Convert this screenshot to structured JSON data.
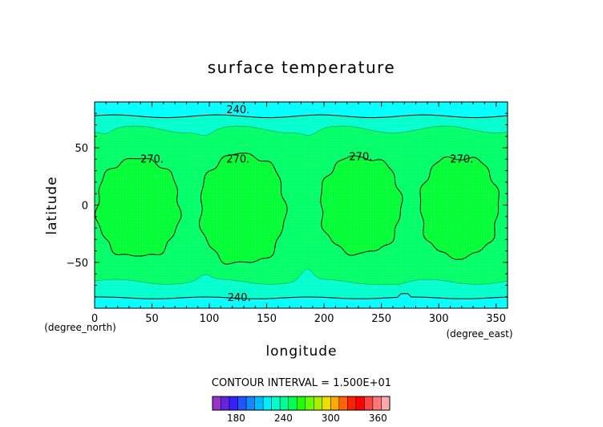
{
  "chart_data": {
    "type": "contour",
    "title": "surface temperature",
    "xlabel": "longitude",
    "ylabel": "latitude",
    "x_unit": "(degree_east)",
    "y_unit": "(degree_north)",
    "xlim": [
      0,
      360
    ],
    "ylim": [
      -90,
      90
    ],
    "x_ticks": [
      0,
      50,
      100,
      150,
      200,
      250,
      300,
      350
    ],
    "y_ticks": [
      50,
      0,
      -50
    ],
    "contour_interval_label": "CONTOUR INTERVAL = 1.500E+01",
    "contour_levels": [
      240,
      255,
      270
    ],
    "contour_labels": [
      {
        "text": "240.",
        "x": 125,
        "y": 83
      },
      {
        "text": "240.",
        "x": 126,
        "y": -81
      },
      {
        "text": "270.",
        "x": 50,
        "y": 40
      },
      {
        "text": "270.",
        "x": 125,
        "y": 40
      },
      {
        "text": "270.",
        "x": 232,
        "y": 42
      },
      {
        "text": "270.",
        "x": 320,
        "y": 40
      }
    ],
    "warm_blobs": [
      {
        "center_lon": 38,
        "lon_halfwidth": 36,
        "north": 40,
        "south": -45
      },
      {
        "center_lon": 129,
        "lon_halfwidth": 37,
        "north": 44,
        "south": -51
      },
      {
        "center_lon": 232,
        "lon_halfwidth": 35,
        "north": 42,
        "south": -42
      },
      {
        "center_lon": 318,
        "lon_halfwidth": 34,
        "north": 42,
        "south": -45
      }
    ],
    "colorbar": {
      "min": 150,
      "max": 375,
      "step": 15,
      "tick_values": [
        180,
        240,
        300,
        360
      ],
      "tick_labels": [
        "180",
        "240",
        "300",
        "360"
      ],
      "colors": [
        "#9933cc",
        "#6622dd",
        "#3322ff",
        "#2255ff",
        "#1188ff",
        "#00bbff",
        "#00eeff",
        "#00ffcc",
        "#00ff99",
        "#00ff55",
        "#22ff00",
        "#66ff00",
        "#aaee00",
        "#eedd00",
        "#ffaa00",
        "#ff6600",
        "#ff2200",
        "#ff0000",
        "#ff4444",
        "#ff7777",
        "#ffaaaa"
      ]
    },
    "fill_colors": {
      "below_240": "#00ffff",
      "240_255": "#00ffcc",
      "255_270": "#00ff66",
      "above_270": "#00ff33"
    }
  }
}
